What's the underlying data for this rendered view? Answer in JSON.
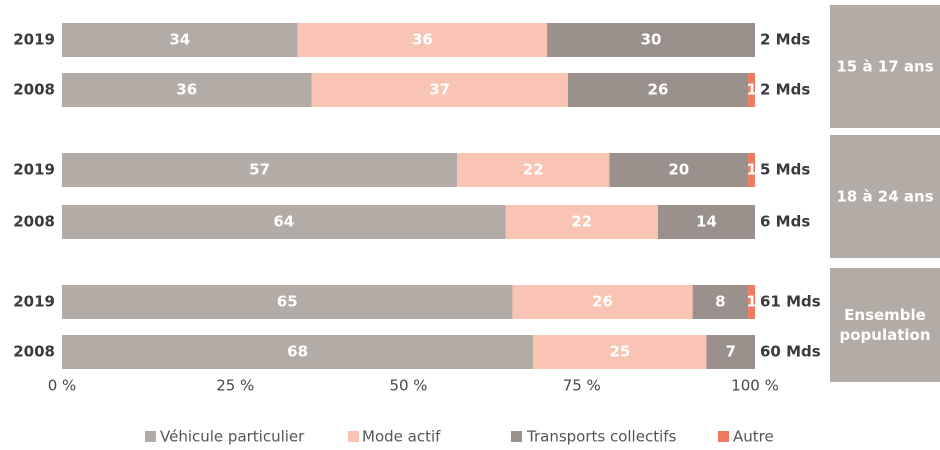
{
  "chart_data": {
    "type": "stacked-barh",
    "categories": [
      "2019",
      "2008",
      "2019",
      "2008",
      "2019",
      "2008"
    ],
    "groups": [
      "15 à 17 ans",
      "18 à 24 ans",
      "Ensemble population"
    ],
    "totals": [
      "2 Mds",
      "2 Mds",
      "5 Mds",
      "6 Mds",
      "61 Mds",
      "60 Mds"
    ],
    "series": [
      {
        "name": "Véhicule particulier",
        "color": "#b3aba5",
        "values": [
          34,
          36,
          57,
          64,
          65,
          68
        ]
      },
      {
        "name": "Mode actif",
        "color": "#f9c4b3",
        "values": [
          36,
          37,
          22,
          22,
          26,
          25
        ]
      },
      {
        "name": "Transports collectifs",
        "color": "#9a918c",
        "values": [
          30,
          26,
          20,
          14,
          8,
          7
        ]
      },
      {
        "name": "Autre",
        "color": "#f07a5f",
        "values": [
          null,
          1,
          1,
          null,
          1,
          null
        ]
      }
    ],
    "xlim": [
      0,
      100
    ],
    "xticks": [
      {
        "value": 0,
        "label": "0 %"
      },
      {
        "value": 25,
        "label": "25 %"
      },
      {
        "value": 50,
        "label": "50 %"
      },
      {
        "value": 75,
        "label": "75 %"
      },
      {
        "value": 100,
        "label": "100 %"
      }
    ]
  }
}
